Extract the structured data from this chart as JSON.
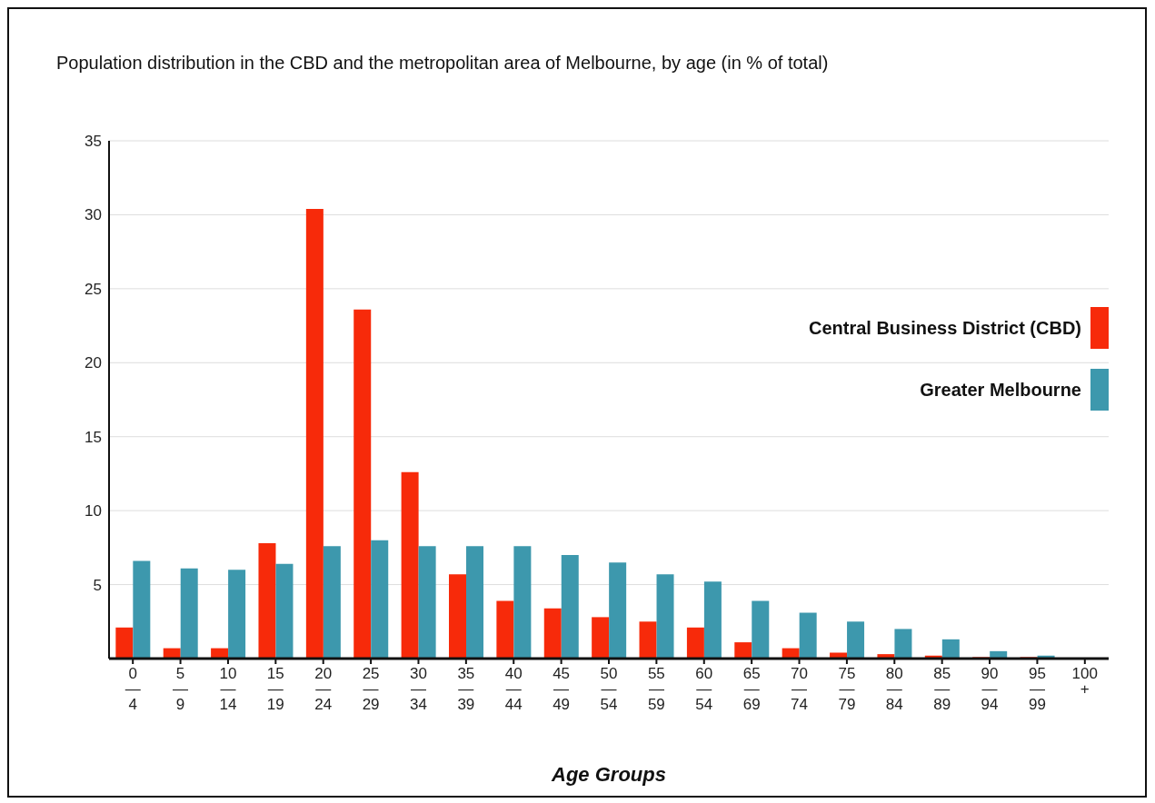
{
  "chart_data": {
    "type": "bar",
    "title": "Population distribution in the CBD and the metropolitan area of Melbourne, by age (in % of total)",
    "xlabel": "Age Groups",
    "categories": [
      "0\n—\n4",
      "5\n—\n9",
      "10\n—\n14",
      "15\n—\n19",
      "20\n—\n24",
      "25\n—\n29",
      "30\n—\n34",
      "35\n—\n39",
      "40\n—\n44",
      "45\n—\n49",
      "50\n—\n54",
      "55\n—\n59",
      "60\n—\n54",
      "65\n—\n69",
      "70\n—\n74",
      "75\n—\n79",
      "80\n—\n84",
      "85\n—\n89",
      "90\n—\n94",
      "95\n—\n99",
      "100\n+"
    ],
    "series": [
      {
        "name": "Central Business District (CBD)",
        "color": "#f72a0a",
        "values": [
          2.1,
          0.7,
          0.7,
          7.8,
          30.4,
          23.6,
          12.6,
          5.7,
          3.9,
          3.4,
          2.8,
          2.5,
          2.1,
          1.1,
          0.7,
          0.4,
          0.3,
          0.2,
          0.1,
          0.1,
          null
        ]
      },
      {
        "name": "Greater Melbourne",
        "color": "#3d98ad",
        "values": [
          6.6,
          6.1,
          6.0,
          6.4,
          7.6,
          8.0,
          7.6,
          7.6,
          7.6,
          7.0,
          6.5,
          5.7,
          5.2,
          3.9,
          3.1,
          2.5,
          2.0,
          1.3,
          0.5,
          0.2,
          null
        ]
      }
    ],
    "ylim": [
      0,
      35
    ],
    "yticks": [
      5,
      10,
      15,
      20,
      25,
      30,
      35
    ],
    "grid": "y",
    "legend": "right"
  }
}
